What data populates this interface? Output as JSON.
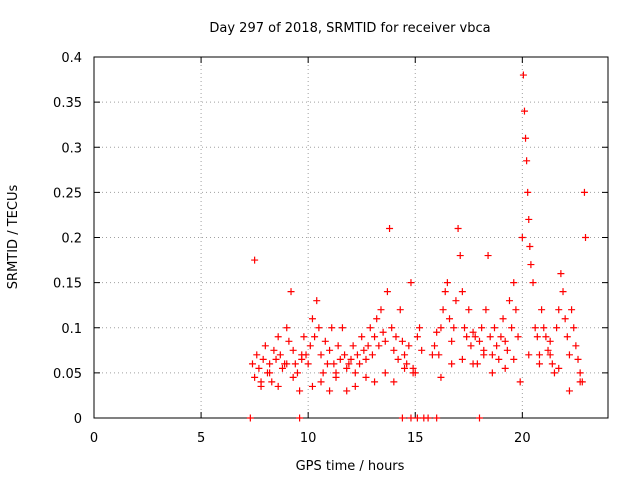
{
  "chart_data": {
    "type": "scatter",
    "title": "Day 297 of 2018, SRMTID for receiver vbca",
    "xlabel": "GPS time / hours",
    "ylabel": "SRMTID / TECUs",
    "xlim": [
      0,
      24
    ],
    "ylim": [
      0,
      0.4
    ],
    "xticks": [
      0,
      5,
      10,
      15,
      20
    ],
    "yticks": [
      0,
      0.05,
      0.1,
      0.15,
      0.2,
      0.25,
      0.3,
      0.35,
      0.4
    ],
    "xtick_labels": [
      "0",
      "5",
      "10",
      "15",
      "20"
    ],
    "ytick_labels": [
      "0",
      "0.05",
      "0.1",
      "0.15",
      "0.2",
      "0.25",
      "0.3",
      "0.35",
      "0.4"
    ],
    "grid": true,
    "marker": "+",
    "color": "#ff0000",
    "series": [
      {
        "name": "SRMTID",
        "x": [
          7.4,
          7.5,
          7.6,
          7.7,
          7.8,
          7.9,
          8.0,
          8.1,
          8.2,
          8.3,
          8.4,
          8.5,
          8.6,
          8.7,
          8.8,
          8.9,
          9.0,
          9.1,
          9.2,
          9.3,
          9.4,
          9.5,
          9.6,
          9.7,
          9.8,
          9.9,
          10.0,
          10.1,
          10.2,
          10.3,
          10.4,
          10.5,
          10.6,
          10.7,
          10.8,
          10.9,
          11.0,
          11.1,
          11.2,
          11.3,
          11.4,
          11.5,
          11.6,
          11.7,
          11.8,
          11.9,
          12.0,
          12.1,
          12.2,
          12.3,
          12.4,
          12.5,
          12.6,
          12.7,
          12.8,
          12.9,
          13.0,
          13.1,
          13.2,
          13.3,
          13.4,
          13.5,
          13.6,
          13.7,
          13.8,
          13.9,
          14.0,
          14.1,
          14.2,
          14.3,
          14.4,
          14.5,
          14.6,
          14.7,
          14.8,
          14.9,
          15.0,
          15.1,
          15.2,
          15.3,
          15.8,
          15.9,
          16.0,
          16.1,
          16.2,
          16.3,
          16.4,
          16.5,
          16.6,
          16.7,
          16.8,
          16.9,
          17.0,
          17.1,
          17.2,
          17.3,
          17.4,
          17.5,
          17.6,
          17.7,
          17.8,
          17.9,
          18.0,
          18.1,
          18.2,
          18.3,
          18.4,
          18.5,
          18.6,
          18.7,
          18.8,
          18.9,
          19.0,
          19.1,
          19.2,
          19.3,
          19.4,
          19.5,
          19.6,
          19.7,
          19.8,
          19.9,
          20.0,
          20.05,
          20.1,
          20.15,
          20.2,
          20.25,
          20.3,
          20.35,
          20.4,
          20.5,
          20.6,
          20.7,
          20.8,
          20.9,
          21.0,
          21.1,
          21.2,
          21.3,
          21.4,
          21.5,
          21.6,
          21.7,
          21.8,
          21.9,
          22.0,
          22.1,
          22.2,
          22.3,
          22.4,
          22.5,
          22.6,
          22.7,
          22.8,
          22.9,
          22.95,
          7.5,
          7.8,
          8.2,
          8.6,
          9.0,
          9.3,
          9.7,
          10.2,
          10.6,
          11.0,
          11.3,
          11.8,
          12.2,
          12.7,
          13.1,
          13.6,
          14.0,
          14.5,
          14.9,
          16.2,
          16.7,
          17.2,
          17.7,
          18.2,
          18.6,
          19.2,
          19.6,
          20.3,
          20.8,
          21.3,
          21.7,
          22.2,
          22.7,
          7.3,
          9.6,
          14.4,
          14.8,
          15.1,
          15.4,
          15.6,
          16.0,
          18.0
        ],
        "y": [
          0.06,
          0.045,
          0.07,
          0.055,
          0.035,
          0.065,
          0.08,
          0.05,
          0.06,
          0.04,
          0.075,
          0.065,
          0.09,
          0.07,
          0.055,
          0.06,
          0.1,
          0.085,
          0.14,
          0.075,
          0.06,
          0.05,
          0.03,
          0.065,
          0.09,
          0.07,
          0.06,
          0.08,
          0.11,
          0.09,
          0.13,
          0.1,
          0.07,
          0.05,
          0.085,
          0.06,
          0.075,
          0.1,
          0.06,
          0.045,
          0.08,
          0.065,
          0.1,
          0.07,
          0.055,
          0.06,
          0.065,
          0.08,
          0.05,
          0.07,
          0.06,
          0.09,
          0.075,
          0.065,
          0.08,
          0.1,
          0.07,
          0.09,
          0.11,
          0.08,
          0.12,
          0.095,
          0.085,
          0.14,
          0.21,
          0.1,
          0.075,
          0.09,
          0.065,
          0.12,
          0.085,
          0.07,
          0.06,
          0.08,
          0.15,
          0.055,
          0.05,
          0.09,
          0.1,
          0.075,
          0.07,
          0.08,
          0.095,
          0.07,
          0.1,
          0.12,
          0.14,
          0.15,
          0.11,
          0.085,
          0.1,
          0.13,
          0.21,
          0.18,
          0.14,
          0.1,
          0.09,
          0.12,
          0.08,
          0.095,
          0.09,
          0.06,
          0.085,
          0.1,
          0.075,
          0.12,
          0.18,
          0.09,
          0.07,
          0.1,
          0.08,
          0.065,
          0.09,
          0.11,
          0.085,
          0.075,
          0.13,
          0.1,
          0.15,
          0.12,
          0.09,
          0.04,
          0.2,
          0.38,
          0.34,
          0.31,
          0.285,
          0.25,
          0.22,
          0.19,
          0.17,
          0.15,
          0.1,
          0.09,
          0.07,
          0.12,
          0.1,
          0.09,
          0.075,
          0.085,
          0.06,
          0.05,
          0.1,
          0.12,
          0.16,
          0.14,
          0.11,
          0.09,
          0.07,
          0.12,
          0.1,
          0.08,
          0.065,
          0.05,
          0.04,
          0.25,
          0.2,
          0.175,
          0.04,
          0.05,
          0.035,
          0.06,
          0.045,
          0.07,
          0.035,
          0.04,
          0.03,
          0.05,
          0.03,
          0.035,
          0.045,
          0.04,
          0.05,
          0.04,
          0.055,
          0.05,
          0.045,
          0.06,
          0.065,
          0.06,
          0.07,
          0.05,
          0.055,
          0.065,
          0.07,
          0.06,
          0.07,
          0.055,
          0.03,
          0.04,
          0.0,
          0.0,
          0.0,
          0.0,
          0.0,
          0.0,
          0.0,
          0.0,
          0.0
        ]
      }
    ]
  }
}
